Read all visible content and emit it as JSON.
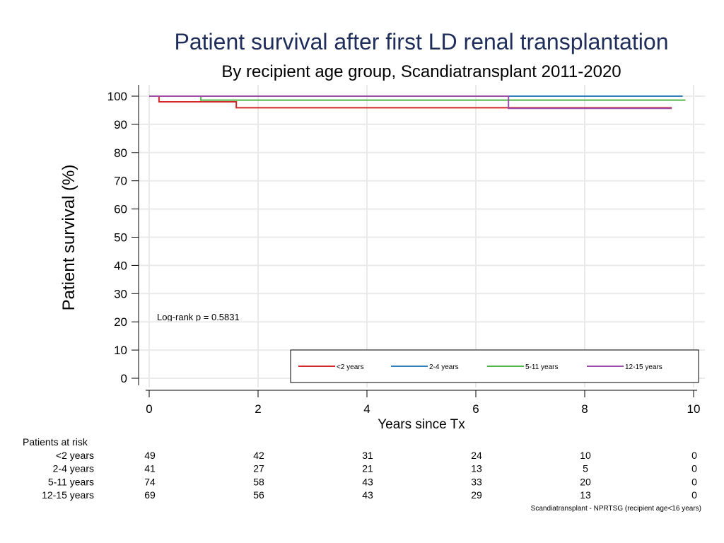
{
  "chart_data": {
    "type": "line",
    "step": true,
    "title": "Patient survival after first LD renal transplantation",
    "subtitle": "By recipient age group, Scandiatransplant 2011-2020",
    "xlabel": "Years since Tx",
    "ylabel": "Patient survival (%)",
    "xlim": [
      0,
      10
    ],
    "ylim": [
      0,
      100
    ],
    "xticks": [
      0,
      2,
      4,
      6,
      8,
      10
    ],
    "yticks": [
      0,
      10,
      20,
      30,
      40,
      50,
      60,
      70,
      80,
      90,
      100
    ],
    "grid": true,
    "legend_position": "bottom-right",
    "annotation": "Log-rank p = 0.5831",
    "series": [
      {
        "name": "<2 years",
        "color": "#d62728",
        "x": [
          0,
          0.18,
          0.18,
          1.6,
          1.6,
          9.6
        ],
        "y": [
          100,
          100,
          98,
          98,
          95.9,
          95.9
        ]
      },
      {
        "name": "2-4 years",
        "color": "#2e7fc0",
        "x": [
          0,
          9.8
        ],
        "y": [
          100,
          100
        ]
      },
      {
        "name": "5-11 years",
        "color": "#4db848",
        "x": [
          0,
          0.95,
          0.95,
          9.85
        ],
        "y": [
          100,
          100,
          98.6,
          98.6
        ]
      },
      {
        "name": "12-15 years",
        "color": "#9b4da8",
        "x": [
          0,
          6.6,
          6.6,
          9.6
        ],
        "y": [
          100,
          100,
          95.7,
          95.7
        ]
      }
    ]
  },
  "risk_table": {
    "header": "Patients at risk",
    "times": [
      0,
      2,
      4,
      6,
      8,
      10
    ],
    "rows": [
      {
        "label": "<2 years",
        "values": [
          "49",
          "42",
          "31",
          "24",
          "10",
          "0"
        ]
      },
      {
        "label": "2-4 years",
        "values": [
          "41",
          "27",
          "21",
          "13",
          "5",
          "0"
        ]
      },
      {
        "label": "5-11 years",
        "values": [
          "74",
          "58",
          "43",
          "33",
          "20",
          "0"
        ]
      },
      {
        "label": "12-15 years",
        "values": [
          "69",
          "56",
          "43",
          "29",
          "13",
          "0"
        ]
      }
    ]
  },
  "footer": "Scandiatransplant - NPRTSG (recipient age<16 years)"
}
